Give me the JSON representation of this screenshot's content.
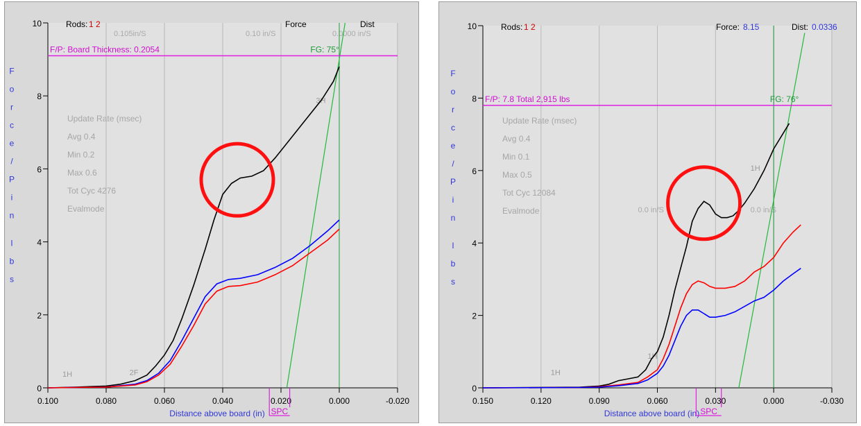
{
  "chart_data": [
    {
      "type": "line",
      "title": "",
      "xlabel": "Distance above board (in)",
      "ylabel": "Force/Pin lbs",
      "xlim": [
        0.1,
        -0.02
      ],
      "ylim": [
        0,
        10
      ],
      "x_ticks": [
        "0.100",
        "0.080",
        "0.060",
        "0.040",
        "0.020",
        "0.000",
        "-0.020"
      ],
      "x_tick_values": [
        0.1,
        0.08,
        0.06,
        0.04,
        0.02,
        0.0,
        -0.02
      ],
      "y_ticks": [
        "0",
        "2",
        "4",
        "6",
        "8",
        "10"
      ],
      "y_tick_values": [
        0,
        2,
        4,
        6,
        8,
        10
      ],
      "grid": true,
      "header": {
        "rods_label": "Rods:",
        "rods_value": "1 2",
        "force_label": "Force",
        "dist_label": "Dist"
      },
      "faint_top": [
        "0.105in/S",
        "0.10 in/S",
        "0.0000 in/S"
      ],
      "fp_label": "F/P: Board Thickness: 0.2054",
      "fp_value": 9.1,
      "fg_label": "FG: 75°",
      "stats": [
        "Update Rate (msec)",
        "Avg 0.4",
        "Min 0.2",
        "Max 0.6",
        "Tot Cyc 4276",
        "Evalmode"
      ],
      "curve_labels": [
        {
          "text": "3H",
          "x": 0.008,
          "y": 7.8
        },
        {
          "text": "1H",
          "x": 0.095,
          "y": 0.3
        },
        {
          "text": "2F",
          "x": 0.072,
          "y": 0.35
        }
      ],
      "spc_label": "SPC",
      "spc_x": [
        0.024,
        0.017
      ],
      "fg_line": [
        [
          0.018,
          0
        ],
        [
          -0.002,
          10
        ]
      ],
      "vline_x": 0.0,
      "highlight_circle": {
        "x": 0.035,
        "y": 5.7
      },
      "series": [
        {
          "name": "",
          "color": "#000000",
          "points": [
            [
              0.1,
              0
            ],
            [
              0.09,
              0.02
            ],
            [
              0.08,
              0.05
            ],
            [
              0.075,
              0.1
            ],
            [
              0.07,
              0.2
            ],
            [
              0.066,
              0.35
            ],
            [
              0.063,
              0.6
            ],
            [
              0.06,
              0.9
            ],
            [
              0.057,
              1.3
            ],
            [
              0.054,
              1.9
            ],
            [
              0.05,
              2.8
            ],
            [
              0.046,
              3.8
            ],
            [
              0.043,
              4.6
            ],
            [
              0.04,
              5.3
            ],
            [
              0.037,
              5.6
            ],
            [
              0.034,
              5.75
            ],
            [
              0.03,
              5.8
            ],
            [
              0.026,
              5.95
            ],
            [
              0.022,
              6.3
            ],
            [
              0.018,
              6.7
            ],
            [
              0.012,
              7.3
            ],
            [
              0.006,
              7.9
            ],
            [
              0.002,
              8.4
            ],
            [
              0.0,
              8.8
            ]
          ]
        },
        {
          "name": "",
          "color": "#0000ff",
          "points": [
            [
              0.1,
              0
            ],
            [
              0.08,
              0.02
            ],
            [
              0.07,
              0.1
            ],
            [
              0.066,
              0.2
            ],
            [
              0.062,
              0.4
            ],
            [
              0.058,
              0.75
            ],
            [
              0.054,
              1.3
            ],
            [
              0.05,
              1.9
            ],
            [
              0.046,
              2.5
            ],
            [
              0.042,
              2.85
            ],
            [
              0.038,
              2.97
            ],
            [
              0.034,
              3.0
            ],
            [
              0.028,
              3.1
            ],
            [
              0.022,
              3.3
            ],
            [
              0.016,
              3.55
            ],
            [
              0.01,
              3.9
            ],
            [
              0.004,
              4.3
            ],
            [
              0.0,
              4.6
            ]
          ]
        },
        {
          "name": "",
          "color": "#ff0000",
          "points": [
            [
              0.1,
              0
            ],
            [
              0.08,
              0.02
            ],
            [
              0.07,
              0.08
            ],
            [
              0.066,
              0.17
            ],
            [
              0.062,
              0.35
            ],
            [
              0.058,
              0.65
            ],
            [
              0.054,
              1.15
            ],
            [
              0.05,
              1.7
            ],
            [
              0.046,
              2.3
            ],
            [
              0.042,
              2.65
            ],
            [
              0.038,
              2.78
            ],
            [
              0.034,
              2.8
            ],
            [
              0.028,
              2.9
            ],
            [
              0.022,
              3.1
            ],
            [
              0.016,
              3.35
            ],
            [
              0.01,
              3.7
            ],
            [
              0.004,
              4.05
            ],
            [
              0.0,
              4.35
            ]
          ]
        }
      ]
    },
    {
      "type": "line",
      "title": "",
      "xlabel": "Distance above board (in)",
      "ylabel": "Force/Pin lbs",
      "xlim": [
        0.15,
        -0.03
      ],
      "ylim": [
        0,
        10
      ],
      "x_ticks": [
        "0.150",
        "0.120",
        "0.090",
        "0.060",
        "0.030",
        "0.000",
        "-0.030"
      ],
      "x_tick_values": [
        0.15,
        0.12,
        0.09,
        0.06,
        0.03,
        0.0,
        -0.03
      ],
      "y_ticks": [
        "0",
        "2",
        "4",
        "6",
        "8",
        "10"
      ],
      "y_tick_values": [
        0,
        2,
        4,
        6,
        8,
        10
      ],
      "grid": true,
      "header": {
        "rods_label": "Rods:",
        "rods_value": "1 2",
        "force_label": "Force:",
        "force_value": "8.15",
        "dist_label": "Dist:",
        "dist_value": "0.0336"
      },
      "fp_label": "F/P: 7.8   Total 2,915 lbs",
      "fp_value": 7.8,
      "fg_label": "FG: 76°",
      "stats": [
        "Update Rate (msec)",
        "Avg 0.4",
        "Min 0.1",
        "Max 0.5",
        "Tot Cyc 12084",
        "Evalmode"
      ],
      "speed_labels": [
        {
          "text": "0.0 in/S",
          "x": 0.07,
          "y": 4.85
        },
        {
          "text": "0.0 in/S",
          "x": 0.012,
          "y": 4.85
        }
      ],
      "curve_labels": [
        {
          "text": "1H",
          "x": 0.012,
          "y": 6.0
        },
        {
          "text": "1H",
          "x": 0.115,
          "y": 0.35
        },
        {
          "text": "1H",
          "x": 0.065,
          "y": 0.8
        }
      ],
      "spc_label": "SPC",
      "spc_x": [
        0.04,
        0.027
      ],
      "fg_line": [
        [
          0.018,
          0
        ],
        [
          -0.016,
          9.8
        ]
      ],
      "vline_x": 0.0,
      "highlight_circle": {
        "x": 0.036,
        "y": 5.1
      },
      "series": [
        {
          "name": "",
          "color": "#000000",
          "points": [
            [
              0.15,
              0
            ],
            [
              0.1,
              0.02
            ],
            [
              0.09,
              0.05
            ],
            [
              0.085,
              0.1
            ],
            [
              0.08,
              0.2
            ],
            [
              0.075,
              0.25
            ],
            [
              0.07,
              0.3
            ],
            [
              0.066,
              0.5
            ],
            [
              0.063,
              0.8
            ],
            [
              0.06,
              1.0
            ],
            [
              0.057,
              1.4
            ],
            [
              0.054,
              2.0
            ],
            [
              0.051,
              2.7
            ],
            [
              0.048,
              3.3
            ],
            [
              0.045,
              3.9
            ],
            [
              0.042,
              4.6
            ],
            [
              0.039,
              4.95
            ],
            [
              0.036,
              5.15
            ],
            [
              0.033,
              5.05
            ],
            [
              0.03,
              4.8
            ],
            [
              0.027,
              4.7
            ],
            [
              0.024,
              4.7
            ],
            [
              0.021,
              4.75
            ],
            [
              0.018,
              4.9
            ],
            [
              0.015,
              5.1
            ],
            [
              0.01,
              5.5
            ],
            [
              0.005,
              6.0
            ],
            [
              0.0,
              6.6
            ],
            [
              -0.008,
              7.3
            ]
          ]
        },
        {
          "name": "",
          "color": "#ff0000",
          "points": [
            [
              0.15,
              0
            ],
            [
              0.1,
              0.01
            ],
            [
              0.09,
              0.03
            ],
            [
              0.08,
              0.08
            ],
            [
              0.07,
              0.15
            ],
            [
              0.065,
              0.3
            ],
            [
              0.06,
              0.5
            ],
            [
              0.057,
              0.8
            ],
            [
              0.054,
              1.2
            ],
            [
              0.051,
              1.7
            ],
            [
              0.048,
              2.2
            ],
            [
              0.045,
              2.6
            ],
            [
              0.042,
              2.85
            ],
            [
              0.039,
              2.95
            ],
            [
              0.036,
              2.9
            ],
            [
              0.033,
              2.8
            ],
            [
              0.03,
              2.75
            ],
            [
              0.025,
              2.75
            ],
            [
              0.02,
              2.8
            ],
            [
              0.015,
              2.95
            ],
            [
              0.01,
              3.2
            ],
            [
              0.005,
              3.35
            ],
            [
              0.0,
              3.6
            ],
            [
              -0.005,
              4.0
            ],
            [
              -0.01,
              4.3
            ],
            [
              -0.014,
              4.5
            ]
          ]
        },
        {
          "name": "",
          "color": "#0000ff",
          "points": [
            [
              0.15,
              0
            ],
            [
              0.1,
              0.01
            ],
            [
              0.09,
              0.02
            ],
            [
              0.08,
              0.06
            ],
            [
              0.07,
              0.12
            ],
            [
              0.065,
              0.22
            ],
            [
              0.06,
              0.4
            ],
            [
              0.057,
              0.6
            ],
            [
              0.054,
              0.9
            ],
            [
              0.051,
              1.3
            ],
            [
              0.048,
              1.7
            ],
            [
              0.045,
              2.0
            ],
            [
              0.042,
              2.15
            ],
            [
              0.039,
              2.15
            ],
            [
              0.036,
              2.05
            ],
            [
              0.033,
              1.95
            ],
            [
              0.03,
              1.95
            ],
            [
              0.025,
              2.0
            ],
            [
              0.02,
              2.1
            ],
            [
              0.015,
              2.25
            ],
            [
              0.01,
              2.4
            ],
            [
              0.005,
              2.5
            ],
            [
              0.0,
              2.7
            ],
            [
              -0.005,
              2.95
            ],
            [
              -0.01,
              3.15
            ],
            [
              -0.014,
              3.3
            ]
          ]
        }
      ]
    }
  ]
}
